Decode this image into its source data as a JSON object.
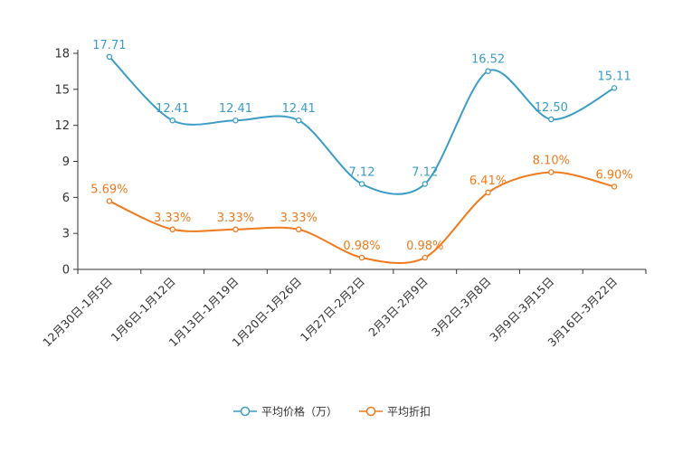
{
  "chart_data": {
    "type": "line",
    "title": "",
    "xlabel": "",
    "ylabel": "",
    "ylim": [
      0,
      18
    ],
    "yticks": [
      0,
      3,
      6,
      9,
      12,
      15,
      18
    ],
    "categories": [
      "12月30日-1月5日",
      "1月6日-1月12日",
      "1月13日-1月19日",
      "1月20日-1月26日",
      "1月27日-2月2日",
      "2月3日-2月9日",
      "3月2日-3月8日",
      "3月9日-3月15日",
      "3月16日-3月22日"
    ],
    "series": [
      {
        "name": "平均价格（万）",
        "color": "#3b9cc6",
        "values": [
          17.71,
          12.41,
          12.41,
          12.41,
          7.12,
          7.12,
          16.52,
          12.5,
          15.11
        ],
        "labels": [
          "17.71",
          "12.41",
          "12.41",
          "12.41",
          "7.12",
          "7.12",
          "16.52",
          "12.50",
          "15.11"
        ]
      },
      {
        "name": "平均折扣",
        "color": "#f07a1c",
        "values": [
          5.69,
          3.33,
          3.33,
          3.33,
          0.98,
          0.98,
          6.41,
          8.1,
          6.9
        ],
        "labels": [
          "5.69%",
          "3.33%",
          "3.33%",
          "3.33%",
          "0.98%",
          "0.98%",
          "6.41%",
          "8.10%",
          "6.90%"
        ]
      }
    ],
    "legend_position": "bottom-center",
    "grid": false
  }
}
